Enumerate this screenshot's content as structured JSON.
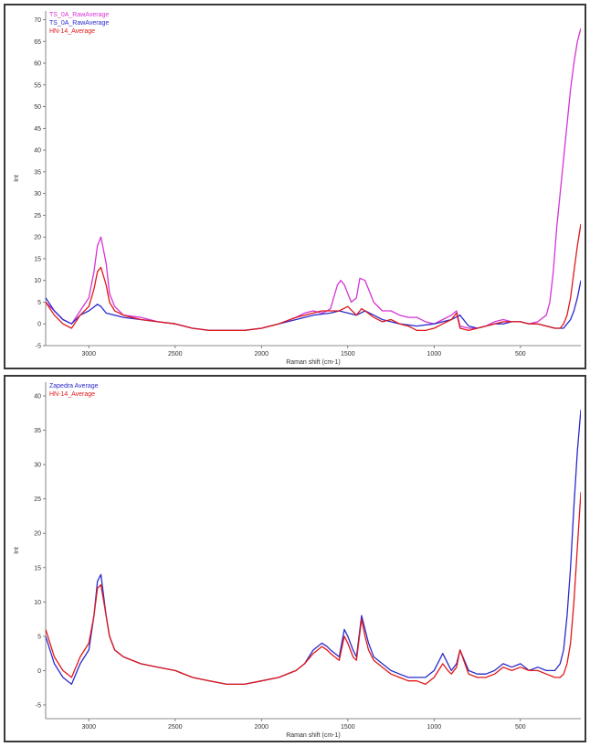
{
  "chart_data": [
    {
      "type": "line",
      "title": "",
      "xlabel": "Raman shift (cm-1)",
      "ylabel": "Int",
      "xlim": [
        3250,
        150
      ],
      "ylim": [
        -5,
        72
      ],
      "x_ticks": [
        3000,
        2500,
        2000,
        1500,
        1000,
        500
      ],
      "y_ticks": [
        -5,
        0,
        5,
        10,
        15,
        20,
        25,
        30,
        35,
        40,
        45,
        50,
        55,
        60,
        65,
        70
      ],
      "legend_position": "top-left",
      "series": [
        {
          "name": "TS_0A_RawAverage",
          "color": "#d633d6",
          "x": [
            3250,
            3200,
            3150,
            3100,
            3050,
            3000,
            2970,
            2950,
            2930,
            2900,
            2880,
            2850,
            2800,
            2700,
            2600,
            2500,
            2400,
            2300,
            2200,
            2100,
            2000,
            1900,
            1800,
            1750,
            1700,
            1650,
            1620,
            1600,
            1560,
            1540,
            1520,
            1480,
            1450,
            1430,
            1400,
            1380,
            1350,
            1300,
            1250,
            1200,
            1150,
            1100,
            1050,
            1000,
            950,
            900,
            870,
            850,
            800,
            750,
            700,
            650,
            600,
            550,
            500,
            450,
            400,
            350,
            330,
            310,
            290,
            270,
            250,
            230,
            210,
            190,
            170,
            150
          ],
          "y": [
            5,
            3,
            1,
            0,
            3,
            6,
            12,
            18,
            20,
            14,
            7,
            4,
            2,
            1.5,
            0.5,
            0,
            -1,
            -1.5,
            -1.5,
            -1.5,
            -1,
            0,
            1.5,
            2.5,
            3,
            2.5,
            3,
            3.5,
            9,
            10,
            9,
            5,
            6,
            10.5,
            10,
            8,
            5,
            3,
            3,
            2,
            1.5,
            1.5,
            0.5,
            0,
            1,
            2,
            3,
            -0.5,
            -1,
            -1,
            -0.5,
            0.5,
            1,
            0.5,
            0.5,
            0,
            0.5,
            2,
            5,
            12,
            22,
            30,
            38,
            46,
            54,
            60,
            65,
            68
          ]
        },
        {
          "name": "TS_0A_RawAverage",
          "color": "#2b2bcc",
          "x": [
            3250,
            3200,
            3150,
            3100,
            3050,
            3000,
            2950,
            2930,
            2900,
            2850,
            2800,
            2700,
            2600,
            2500,
            2400,
            2300,
            2200,
            2100,
            2000,
            1900,
            1800,
            1700,
            1600,
            1550,
            1500,
            1450,
            1400,
            1350,
            1300,
            1200,
            1100,
            1000,
            900,
            850,
            800,
            750,
            700,
            650,
            600,
            550,
            500,
            450,
            400,
            350,
            300,
            250,
            230,
            210,
            190,
            170,
            150
          ],
          "y": [
            6,
            3,
            1,
            0,
            2,
            3,
            4.5,
            4,
            2.5,
            2,
            1.5,
            1,
            0.5,
            0,
            -1,
            -1.5,
            -1.5,
            -1.5,
            -1,
            0,
            1,
            2,
            2.5,
            3,
            2.5,
            2,
            3,
            2,
            1,
            0,
            -0.5,
            0,
            1,
            2,
            -0.5,
            -1,
            -0.5,
            0,
            0,
            0.5,
            0.5,
            0,
            0,
            -0.5,
            -1,
            -1,
            0,
            1,
            3,
            6,
            10
          ]
        },
        {
          "name": "HN-14_Average",
          "color": "#e01818",
          "x": [
            3250,
            3200,
            3150,
            3100,
            3050,
            3000,
            2970,
            2950,
            2930,
            2900,
            2880,
            2850,
            2800,
            2700,
            2600,
            2500,
            2400,
            2300,
            2200,
            2100,
            2000,
            1900,
            1800,
            1700,
            1650,
            1600,
            1550,
            1500,
            1450,
            1420,
            1400,
            1350,
            1300,
            1250,
            1200,
            1150,
            1100,
            1050,
            1000,
            950,
            900,
            870,
            850,
            800,
            750,
            700,
            650,
            600,
            550,
            500,
            450,
            400,
            350,
            300,
            270,
            250,
            230,
            210,
            190,
            170,
            150
          ],
          "y": [
            5,
            2,
            0,
            -1,
            2,
            4,
            8,
            12,
            13,
            9,
            5,
            3,
            2,
            1,
            0.5,
            0,
            -1,
            -1.5,
            -1.5,
            -1.5,
            -1,
            0,
            1.5,
            2.5,
            3,
            3,
            3,
            4,
            2,
            3.5,
            3,
            1.5,
            0.5,
            1,
            0,
            -0.5,
            -1.5,
            -1.5,
            -1,
            0,
            1,
            2.5,
            -1,
            -1.5,
            -1,
            -0.5,
            0,
            0.5,
            0.5,
            0.5,
            0,
            0,
            -0.5,
            -1,
            -1,
            0,
            2,
            6,
            12,
            18,
            23
          ]
        }
      ]
    },
    {
      "type": "line",
      "title": "",
      "xlabel": "Raman shift (cm-1)",
      "ylabel": "Int",
      "xlim": [
        3250,
        150
      ],
      "ylim": [
        -7,
        42
      ],
      "x_ticks": [
        3000,
        2500,
        2000,
        1500,
        1000,
        500
      ],
      "y_ticks": [
        -5,
        0,
        5,
        10,
        15,
        20,
        25,
        30,
        35,
        40
      ],
      "legend_position": "top-left",
      "series": [
        {
          "name": "Zapedra Average",
          "color": "#2b2bcc",
          "x": [
            3250,
            3200,
            3150,
            3100,
            3050,
            3000,
            2970,
            2950,
            2930,
            2900,
            2880,
            2850,
            2800,
            2700,
            2600,
            2500,
            2400,
            2300,
            2200,
            2100,
            2000,
            1900,
            1800,
            1750,
            1700,
            1650,
            1620,
            1600,
            1550,
            1520,
            1500,
            1470,
            1450,
            1420,
            1400,
            1380,
            1350,
            1300,
            1250,
            1200,
            1150,
            1100,
            1050,
            1000,
            950,
            920,
            900,
            870,
            850,
            800,
            750,
            700,
            650,
            600,
            550,
            500,
            450,
            400,
            350,
            300,
            270,
            250,
            230,
            210,
            190,
            170,
            150
          ],
          "y": [
            5,
            1,
            -1,
            -2,
            1,
            3,
            8,
            13,
            14,
            8,
            5,
            3,
            2,
            1,
            0.5,
            0,
            -1,
            -1.5,
            -2,
            -2,
            -1.5,
            -1,
            0,
            1,
            3,
            4,
            3.5,
            3,
            2,
            6,
            5,
            3,
            2,
            8,
            6,
            4,
            2,
            1,
            0,
            -0.5,
            -1,
            -1,
            -1,
            0,
            2.5,
            1,
            0,
            1,
            3,
            0,
            -0.5,
            -0.5,
            0,
            1,
            0.5,
            1,
            0,
            0.5,
            0,
            0,
            1,
            3,
            8,
            15,
            24,
            32,
            38
          ]
        },
        {
          "name": "HN-14_Average",
          "color": "#e01818",
          "x": [
            3250,
            3200,
            3150,
            3100,
            3050,
            3000,
            2970,
            2950,
            2930,
            2900,
            2880,
            2850,
            2800,
            2700,
            2600,
            2500,
            2400,
            2300,
            2200,
            2100,
            2000,
            1900,
            1800,
            1750,
            1700,
            1650,
            1620,
            1600,
            1550,
            1520,
            1500,
            1470,
            1450,
            1420,
            1400,
            1380,
            1350,
            1300,
            1250,
            1200,
            1150,
            1100,
            1050,
            1000,
            950,
            920,
            900,
            870,
            850,
            800,
            750,
            700,
            650,
            600,
            550,
            500,
            450,
            400,
            350,
            300,
            270,
            250,
            230,
            210,
            190,
            170,
            150
          ],
          "y": [
            6,
            2,
            0,
            -1,
            2,
            4,
            8,
            12,
            12.5,
            8,
            5,
            3,
            2,
            1,
            0.5,
            0,
            -1,
            -1.5,
            -2,
            -2,
            -1.5,
            -1,
            0,
            1,
            2.5,
            3.5,
            3,
            2.5,
            1.5,
            5,
            4,
            2,
            1.5,
            7.5,
            5,
            3,
            1.5,
            0.5,
            -0.5,
            -1,
            -1.5,
            -1.5,
            -2,
            -1,
            1,
            0,
            -0.5,
            0.5,
            3,
            -0.5,
            -1,
            -1,
            -0.5,
            0.5,
            0,
            0.5,
            0,
            0,
            -0.5,
            -1,
            -1,
            -0.5,
            1,
            4,
            10,
            18,
            26
          ]
        }
      ]
    }
  ]
}
